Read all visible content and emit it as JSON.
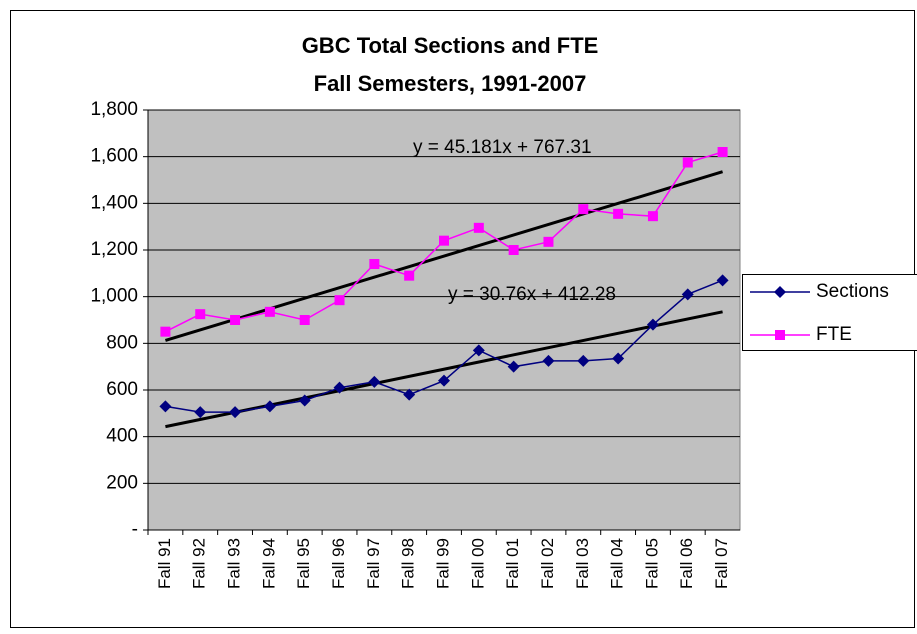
{
  "chart_data": {
    "type": "line",
    "title": "GBC Total Sections and FTE",
    "subtitle": "Fall Semesters, 1991-2007",
    "categories": [
      "Fall 91",
      "Fall 92",
      "Fall 93",
      "Fall 94",
      "Fall 95",
      "Fall 96",
      "Fall 97",
      "Fall 98",
      "Fall 99",
      "Fall 00",
      "Fall 01",
      "Fall 02",
      "Fall 03",
      "Fall 04",
      "Fall 05",
      "Fall 06",
      "Fall 07"
    ],
    "series": [
      {
        "name": "Sections",
        "color": "#000080",
        "marker": "diamond",
        "values": [
          530,
          505,
          505,
          530,
          555,
          610,
          635,
          580,
          640,
          770,
          700,
          725,
          725,
          735,
          880,
          1010,
          1070
        ]
      },
      {
        "name": "FTE",
        "color": "#ff00ff",
        "marker": "square",
        "values": [
          850,
          925,
          900,
          935,
          900,
          985,
          1140,
          1090,
          1240,
          1295,
          1200,
          1235,
          1375,
          1355,
          1345,
          1575,
          1620
        ]
      }
    ],
    "trendlines": [
      {
        "label": "y = 30.76x + 412.28",
        "slope": 30.76,
        "intercept": 412.28
      },
      {
        "label": "y = 45.181x + 767.31",
        "slope": 45.181,
        "intercept": 767.31
      }
    ],
    "ylim": [
      0,
      1800
    ],
    "yticks": [
      {
        "value": 0,
        "label": "-"
      },
      200,
      400,
      600,
      800,
      {
        "value": 1000,
        "label": "1,000"
      },
      {
        "value": 1200,
        "label": "1,200"
      },
      {
        "value": 1400,
        "label": "1,400"
      },
      {
        "value": 1600,
        "label": "1,600"
      },
      {
        "value": 1800,
        "label": "1,800"
      }
    ],
    "grid": true,
    "legend": "right"
  }
}
